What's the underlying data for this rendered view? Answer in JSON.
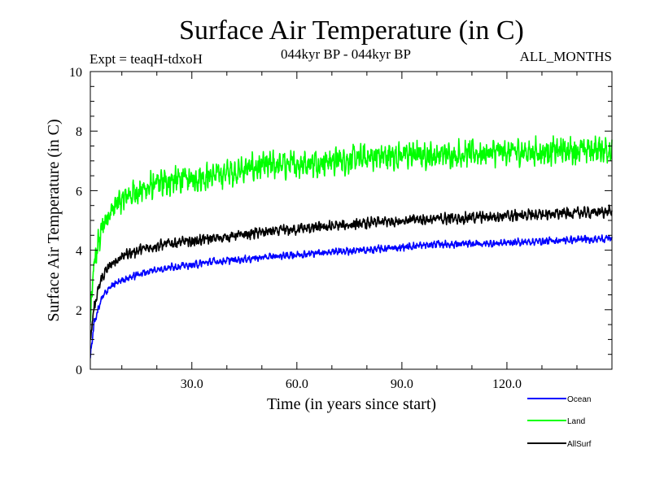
{
  "chart_data": {
    "type": "line",
    "title": "Surface Air Temperature (in C)",
    "subtitle": "044kyr BP - 044kyr BP",
    "experiment_label": "Expt = teaqH-tdxoH",
    "period_label": "ALL_MONTHS",
    "xlabel": "Time (in years since start)",
    "ylabel": "Surface Air Temperature (in C)",
    "xlim": [
      1,
      150
    ],
    "ylim": [
      0,
      10
    ],
    "x_ticks": [
      30,
      60,
      90,
      120
    ],
    "x_tick_labels": [
      "30.0",
      "60.0",
      "90.0",
      "120.0"
    ],
    "y_ticks": [
      0,
      2,
      4,
      6,
      8,
      10
    ],
    "y_tick_labels": [
      "0",
      "2",
      "4",
      "6",
      "8",
      "10"
    ],
    "legend_position": "bottom-right",
    "samples_per_year": 12,
    "series": [
      {
        "name": "Ocean",
        "color": "#0000ff",
        "noise": 0.12,
        "start": 0.4,
        "anchors": [
          [
            1,
            0.4
          ],
          [
            2,
            1.5
          ],
          [
            4,
            2.3
          ],
          [
            6,
            2.7
          ],
          [
            10,
            3.0
          ],
          [
            15,
            3.2
          ],
          [
            20,
            3.35
          ],
          [
            25,
            3.45
          ],
          [
            30,
            3.5
          ],
          [
            35,
            3.6
          ],
          [
            40,
            3.65
          ],
          [
            50,
            3.75
          ],
          [
            60,
            3.85
          ],
          [
            70,
            3.95
          ],
          [
            80,
            4.0
          ],
          [
            90,
            4.1
          ],
          [
            100,
            4.2
          ],
          [
            110,
            4.2
          ],
          [
            120,
            4.25
          ],
          [
            130,
            4.3
          ],
          [
            140,
            4.35
          ],
          [
            150,
            4.4
          ]
        ]
      },
      {
        "name": "Land",
        "color": "#00ff00",
        "noise": 0.45,
        "start": 1.5,
        "anchors": [
          [
            1,
            1.5
          ],
          [
            2,
            3.5
          ],
          [
            4,
            4.6
          ],
          [
            6,
            5.2
          ],
          [
            10,
            5.7
          ],
          [
            15,
            6.0
          ],
          [
            20,
            6.2
          ],
          [
            25,
            6.35
          ],
          [
            30,
            6.4
          ],
          [
            40,
            6.6
          ],
          [
            50,
            6.8
          ],
          [
            60,
            6.9
          ],
          [
            70,
            7.0
          ],
          [
            80,
            7.1
          ],
          [
            90,
            7.2
          ],
          [
            100,
            7.2
          ],
          [
            110,
            7.25
          ],
          [
            120,
            7.3
          ],
          [
            130,
            7.3
          ],
          [
            140,
            7.35
          ],
          [
            150,
            7.4
          ]
        ]
      },
      {
        "name": "AllSurf",
        "color": "#000000",
        "noise": 0.18,
        "start": 0.9,
        "anchors": [
          [
            1,
            0.9
          ],
          [
            2,
            2.0
          ],
          [
            4,
            3.0
          ],
          [
            6,
            3.4
          ],
          [
            10,
            3.8
          ],
          [
            15,
            4.0
          ],
          [
            20,
            4.15
          ],
          [
            25,
            4.25
          ],
          [
            30,
            4.3
          ],
          [
            40,
            4.45
          ],
          [
            50,
            4.6
          ],
          [
            60,
            4.7
          ],
          [
            70,
            4.8
          ],
          [
            80,
            4.9
          ],
          [
            90,
            5.0
          ],
          [
            100,
            5.05
          ],
          [
            110,
            5.1
          ],
          [
            120,
            5.15
          ],
          [
            130,
            5.2
          ],
          [
            140,
            5.25
          ],
          [
            150,
            5.3
          ]
        ]
      }
    ]
  }
}
